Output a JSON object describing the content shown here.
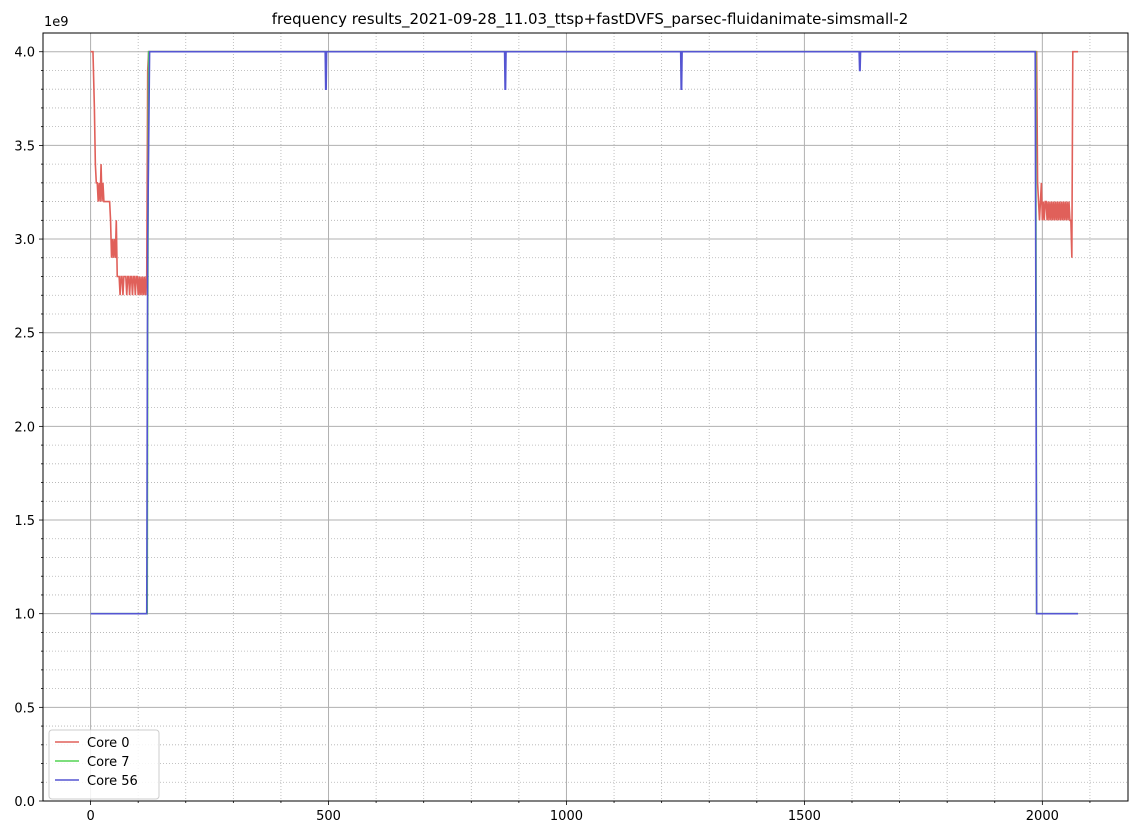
{
  "chart_data": {
    "type": "line",
    "title": "frequency results_2021-09-28_11.03_ttsp+fastDVFS_parsec-fluidanimate-simsmall-2",
    "xlabel": "",
    "ylabel": "",
    "y_multiplier_label": "1e9",
    "xlim": [
      -100,
      2180
    ],
    "ylim": [
      0,
      4.1
    ],
    "x_ticks": [
      0,
      500,
      1000,
      1500,
      2000
    ],
    "x_tick_labels": [
      "0",
      "500",
      "1000",
      "1500",
      "2000"
    ],
    "y_ticks": [
      0,
      0.5,
      1.0,
      1.5,
      2.0,
      2.5,
      3.0,
      3.5,
      4.0
    ],
    "y_tick_labels": [
      "0.0",
      "0.5",
      "1.0",
      "1.5",
      "2.0",
      "2.5",
      "3.0",
      "3.5",
      "4.0"
    ],
    "grid": "major solid, minor dotted",
    "legend_position": "lower-left",
    "series": [
      {
        "name": "Core 0",
        "color": "#e0605a",
        "x": [
          0,
          5,
          8,
          10,
          12,
          14,
          16,
          18,
          20,
          22,
          24,
          26,
          28,
          30,
          40,
          42,
          44,
          46,
          48,
          50,
          52,
          54,
          56,
          58,
          60,
          62,
          64,
          66,
          68,
          70,
          72,
          74,
          76,
          78,
          80,
          82,
          84,
          86,
          88,
          90,
          92,
          94,
          96,
          98,
          100,
          102,
          104,
          106,
          108,
          110,
          112,
          114,
          116,
          118,
          120,
          122,
          1988,
          1990,
          1992,
          1994,
          1996,
          1998,
          2000,
          2002,
          2004,
          2006,
          2008,
          2010,
          2012,
          2014,
          2016,
          2018,
          2020,
          2022,
          2024,
          2026,
          2028,
          2030,
          2032,
          2034,
          2036,
          2038,
          2040,
          2042,
          2044,
          2046,
          2048,
          2050,
          2052,
          2054,
          2056,
          2058,
          2060,
          2062,
          2064,
          2070,
          2075
        ],
        "y": [
          4.0,
          4.0,
          3.7,
          3.4,
          3.3,
          3.3,
          3.2,
          3.3,
          3.2,
          3.4,
          3.2,
          3.3,
          3.2,
          3.2,
          3.2,
          3.1,
          2.9,
          3.0,
          2.9,
          3.0,
          2.9,
          3.1,
          2.8,
          2.8,
          2.8,
          2.7,
          2.8,
          2.8,
          2.7,
          2.8,
          2.8,
          2.8,
          2.7,
          2.8,
          2.8,
          2.7,
          2.8,
          2.8,
          2.7,
          2.8,
          2.8,
          2.7,
          2.8,
          2.8,
          2.7,
          2.8,
          2.7,
          2.8,
          2.7,
          2.8,
          2.7,
          2.8,
          2.7,
          2.8,
          3.9,
          4.0,
          4.0,
          3.3,
          3.2,
          3.1,
          3.2,
          3.3,
          3.1,
          3.2,
          3.1,
          3.2,
          3.2,
          3.1,
          3.2,
          3.1,
          3.2,
          3.1,
          3.2,
          3.1,
          3.2,
          3.1,
          3.2,
          3.1,
          3.2,
          3.1,
          3.2,
          3.1,
          3.2,
          3.1,
          3.2,
          3.1,
          3.2,
          3.1,
          3.2,
          3.1,
          3.2,
          3.1,
          3.1,
          2.9,
          4.0,
          4.0,
          4.0
        ]
      },
      {
        "name": "Core 7",
        "color": "#52d352",
        "x": [
          0,
          119,
          120,
          122,
          1986,
          1988,
          2075
        ],
        "y": [
          1.0,
          1.0,
          2.5,
          4.0,
          4.0,
          1.0,
          1.0
        ]
      },
      {
        "name": "Core 56",
        "color": "#5555d2",
        "x": [
          0,
          118,
          120,
          124,
          493,
          494,
          495,
          496,
          870,
          871,
          872,
          873,
          1240,
          1241,
          1242,
          1243,
          1615,
          1616,
          1617,
          1618,
          1985,
          1988,
          2075
        ],
        "y": [
          1.0,
          1.0,
          3.0,
          4.0,
          4.0,
          3.8,
          3.8,
          4.0,
          4.0,
          3.8,
          3.8,
          4.0,
          4.0,
          3.8,
          3.8,
          4.0,
          4.0,
          3.9,
          3.9,
          4.0,
          4.0,
          1.0,
          1.0
        ]
      }
    ]
  }
}
